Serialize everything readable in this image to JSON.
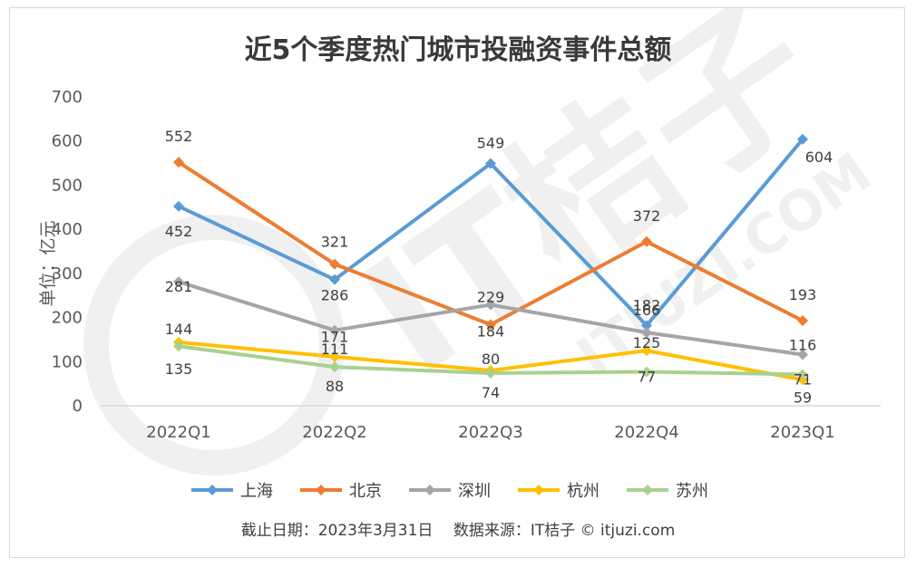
{
  "chart_data": {
    "type": "line",
    "title": "近5个季度热门城市投融资事件总额",
    "ylabel": "单位：亿元",
    "xlabel": "",
    "ylim": [
      0,
      700
    ],
    "yticks": [
      0,
      100,
      200,
      300,
      400,
      500,
      600,
      700
    ],
    "categories": [
      "2022Q1",
      "2022Q2",
      "2022Q3",
      "2022Q4",
      "2023Q1"
    ],
    "grid": "horizontal baseline only",
    "legend_position": "bottom",
    "series": [
      {
        "name": "上海",
        "color": "#5b9bd5",
        "values": [
          452,
          286,
          549,
          182,
          604
        ]
      },
      {
        "name": "北京",
        "color": "#ed7d31",
        "values": [
          552,
          321,
          184,
          372,
          193
        ]
      },
      {
        "name": "深圳",
        "color": "#a5a5a5",
        "values": [
          281,
          171,
          229,
          166,
          116
        ]
      },
      {
        "name": "杭州",
        "color": "#ffc000",
        "values": [
          144,
          111,
          80,
          125,
          59
        ]
      },
      {
        "name": "苏州",
        "color": "#a9d18e",
        "values": [
          135,
          88,
          74,
          77,
          71
        ]
      }
    ]
  },
  "footnote": "截止日期：2023年3月31日　 数据来源：IT桔子 © itjuzi.com",
  "watermark": {
    "text": "IT桔子",
    "sub": "ITJUZI.COM"
  }
}
